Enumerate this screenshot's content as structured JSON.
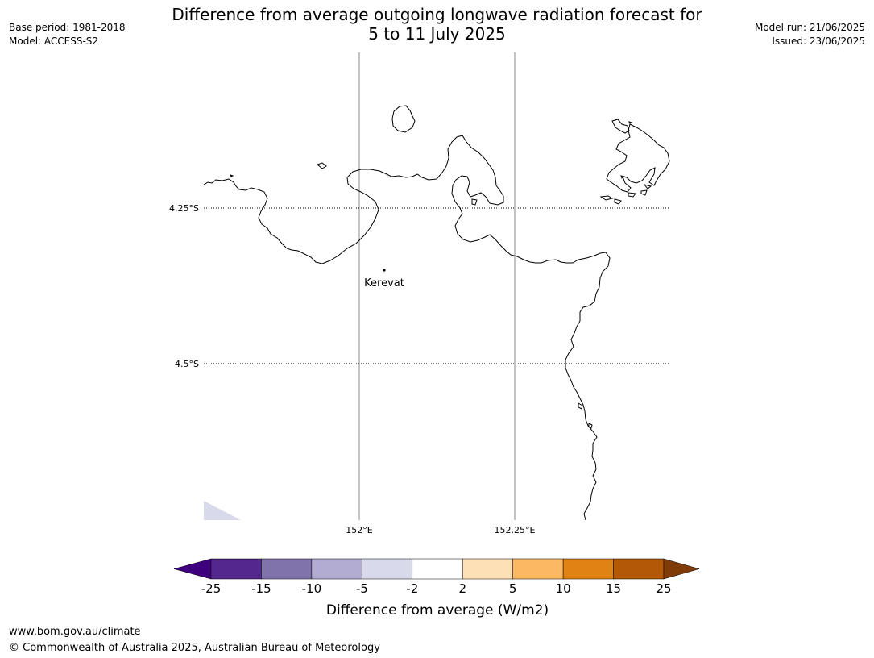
{
  "title_line1": "Difference from average outgoing longwave radiation forecast for",
  "title_line2": "5 to 11 July 2025",
  "meta_left": [
    "Base period: 1981-2018",
    "Model: ACCESS-S2"
  ],
  "meta_right": [
    "Model run: 21/06/2025",
    "Issued: 23/06/2025"
  ],
  "map": {
    "lat_labels": [
      "4.25°S",
      "4.5°S"
    ],
    "lon_labels": [
      "152°E",
      "152.25°E"
    ],
    "place": "Kerevat",
    "coastline_color": "#000000",
    "gridline_color": "#888888"
  },
  "colorbar": {
    "label": "Difference from average (W/m2)",
    "ticks": [
      "-25",
      "-15",
      "-10",
      "-5",
      "-2",
      "2",
      "5",
      "10",
      "15",
      "25"
    ],
    "colors": [
      "#3f007d",
      "#54278f",
      "#8073ac",
      "#b2abd2",
      "#d8daeb",
      "#ffffff",
      "#fee0b6",
      "#fdb863",
      "#e08214",
      "#b35806",
      "#7f3b08"
    ]
  },
  "footer": {
    "url": "www.bom.gov.au/climate",
    "copyright": "© Commonwealth of Australia 2025, Australian Bureau of Meteorology"
  }
}
